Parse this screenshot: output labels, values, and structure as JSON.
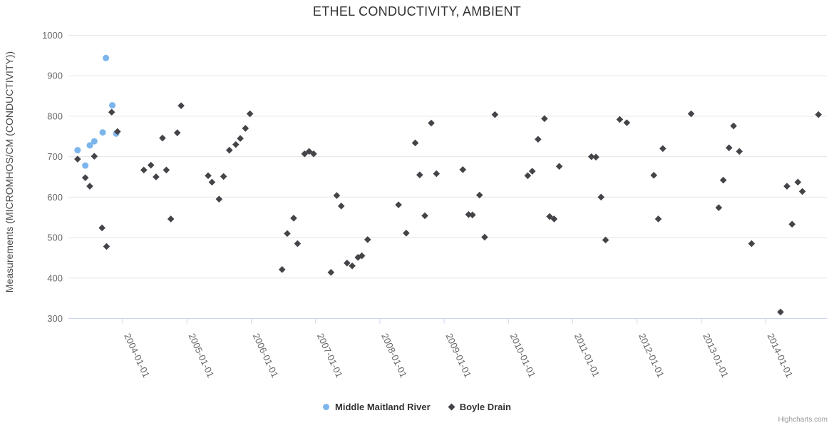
{
  "chart": {
    "title": "ETHEL CONDUCTIVITY, AMBIENT",
    "y_axis_title": "Measurements (MICROMHOS/CM (CONDUCTIVITY))",
    "credits": "Highcharts.com",
    "colors": {
      "background": "#ffffff",
      "grid": "#e6e6e6",
      "axis_line": "#ccd6eb",
      "tick_label": "#666666",
      "title": "#333333",
      "legend_text": "#333333",
      "credits_text": "#999999"
    }
  },
  "chart_data": {
    "type": "scatter",
    "title": "ETHEL CONDUCTIVITY, AMBIENT",
    "xlabel": "",
    "ylabel": "Measurements (MICROMHOS/CM (CONDUCTIVITY))",
    "x_unit": "decimal_year",
    "xlim": [
      2003.16,
      2014.95
    ],
    "ylim": [
      300,
      1000
    ],
    "y_ticks": [
      300,
      400,
      500,
      600,
      700,
      800,
      900,
      1000
    ],
    "x_tick_labels": [
      "2004-01-01",
      "2005-01-01",
      "2006-01-01",
      "2007-01-01",
      "2008-01-01",
      "2009-01-01",
      "2010-01-01",
      "2011-01-01",
      "2012-01-01",
      "2013-01-01",
      "2014-01-01"
    ],
    "grid": "horizontal",
    "legend_position": "bottom-center",
    "series": [
      {
        "name": "Middle Maitland River",
        "color": "#7cb5ec",
        "marker": "circle",
        "points": [
          [
            2003.3,
            716
          ],
          [
            2003.42,
            678
          ],
          [
            2003.49,
            728
          ],
          [
            2003.56,
            738
          ],
          [
            2003.69,
            760
          ],
          [
            2003.74,
            944
          ],
          [
            2003.84,
            827
          ],
          [
            2003.9,
            757
          ]
        ]
      },
      {
        "name": "Boyle Drain",
        "color": "#434348",
        "marker": "diamond",
        "points": [
          [
            2003.3,
            694
          ],
          [
            2003.42,
            648
          ],
          [
            2003.49,
            627
          ],
          [
            2003.56,
            701
          ],
          [
            2003.68,
            524
          ],
          [
            2003.75,
            478
          ],
          [
            2003.83,
            810
          ],
          [
            2003.92,
            762
          ],
          [
            2004.33,
            667
          ],
          [
            2004.44,
            679
          ],
          [
            2004.52,
            650
          ],
          [
            2004.62,
            746
          ],
          [
            2004.68,
            667
          ],
          [
            2004.75,
            546
          ],
          [
            2004.85,
            759
          ],
          [
            2004.91,
            826
          ],
          [
            2005.33,
            653
          ],
          [
            2005.39,
            637
          ],
          [
            2005.5,
            595
          ],
          [
            2005.57,
            651
          ],
          [
            2005.66,
            716
          ],
          [
            2005.76,
            730
          ],
          [
            2005.83,
            745
          ],
          [
            2005.91,
            770
          ],
          [
            2005.98,
            806
          ],
          [
            2006.48,
            421
          ],
          [
            2006.56,
            510
          ],
          [
            2006.66,
            548
          ],
          [
            2006.72,
            485
          ],
          [
            2006.83,
            707
          ],
          [
            2006.9,
            713
          ],
          [
            2006.97,
            707
          ],
          [
            2007.24,
            414
          ],
          [
            2007.33,
            604
          ],
          [
            2007.4,
            578
          ],
          [
            2007.49,
            437
          ],
          [
            2007.57,
            430
          ],
          [
            2007.66,
            451
          ],
          [
            2007.72,
            455
          ],
          [
            2007.81,
            495
          ],
          [
            2008.29,
            581
          ],
          [
            2008.41,
            511
          ],
          [
            2008.55,
            734
          ],
          [
            2008.62,
            655
          ],
          [
            2008.7,
            554
          ],
          [
            2008.8,
            783
          ],
          [
            2008.88,
            658
          ],
          [
            2009.29,
            668
          ],
          [
            2009.38,
            557
          ],
          [
            2009.44,
            556
          ],
          [
            2009.55,
            605
          ],
          [
            2009.63,
            501
          ],
          [
            2009.79,
            804
          ],
          [
            2010.3,
            653
          ],
          [
            2010.37,
            664
          ],
          [
            2010.46,
            743
          ],
          [
            2010.56,
            794
          ],
          [
            2010.64,
            552
          ],
          [
            2010.71,
            546
          ],
          [
            2010.79,
            676
          ],
          [
            2011.29,
            700
          ],
          [
            2011.36,
            699
          ],
          [
            2011.44,
            600
          ],
          [
            2011.51,
            494
          ],
          [
            2011.73,
            792
          ],
          [
            2011.84,
            784
          ],
          [
            2012.26,
            654
          ],
          [
            2012.33,
            546
          ],
          [
            2012.4,
            720
          ],
          [
            2012.84,
            806
          ],
          [
            2013.27,
            574
          ],
          [
            2013.34,
            642
          ],
          [
            2013.43,
            722
          ],
          [
            2013.5,
            776
          ],
          [
            2013.59,
            713
          ],
          [
            2013.78,
            485
          ],
          [
            2014.23,
            316
          ],
          [
            2014.33,
            627
          ],
          [
            2014.41,
            533
          ],
          [
            2014.5,
            637
          ],
          [
            2014.57,
            614
          ],
          [
            2014.82,
            804
          ]
        ]
      }
    ]
  }
}
